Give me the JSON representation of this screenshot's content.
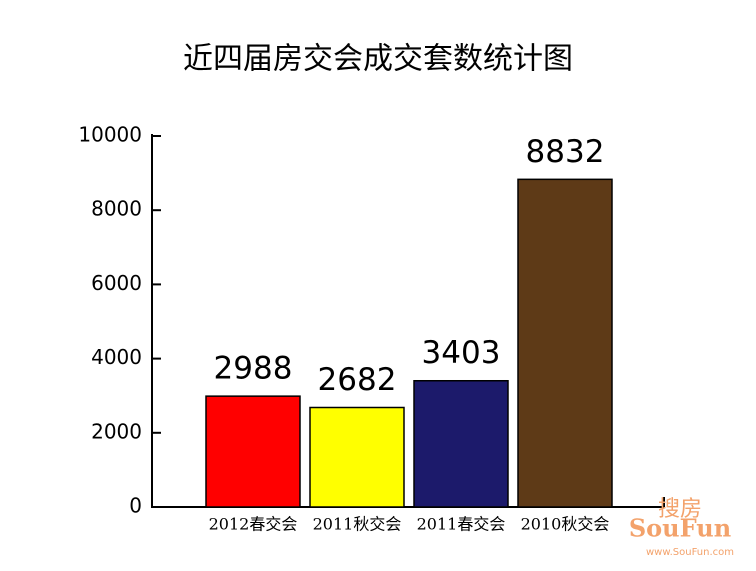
{
  "chart_data": {
    "type": "bar",
    "title": "近四届房交会成交套数统计图",
    "categories": [
      "2012春交会",
      "2011秋交会",
      "2011春交会",
      "2010秋交会"
    ],
    "values": [
      2988,
      2682,
      3403,
      8832
    ],
    "colors": [
      "#ff0000",
      "#ffff00",
      "#1c1a6b",
      "#5e3a17"
    ],
    "ylim": [
      0,
      10000
    ],
    "yticks": [
      0,
      2000,
      4000,
      6000,
      8000,
      10000
    ],
    "grid": false,
    "watermark": [
      "搜房",
      "SouFun",
      "www.SouFun.com"
    ]
  }
}
